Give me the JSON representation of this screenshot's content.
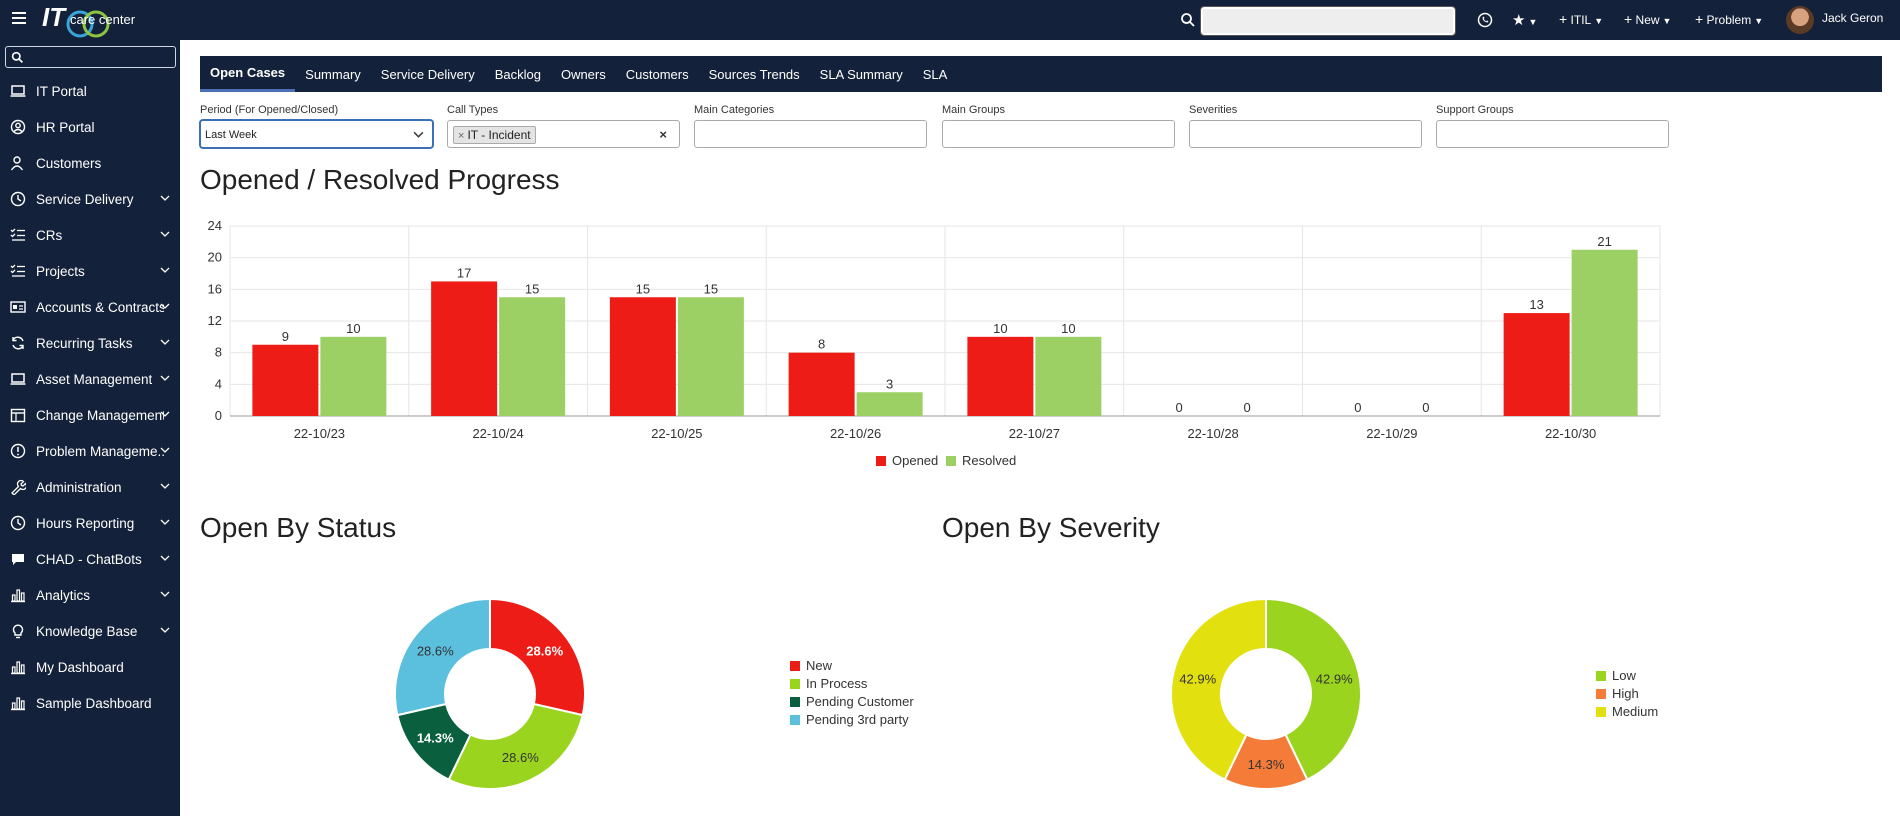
{
  "topbar": {
    "logo_text": "IT",
    "logo_sub": "care center",
    "menu_itil": "ITIL",
    "menu_new": "New",
    "menu_problem": "Problem",
    "user_name": "Jack Geron"
  },
  "sidebar": {
    "items": [
      {
        "label": "IT Portal",
        "icon": "laptop-icon",
        "chevron": false
      },
      {
        "label": "HR Portal",
        "icon": "user-circle-icon",
        "chevron": false
      },
      {
        "label": "Customers",
        "icon": "user-icon",
        "chevron": false
      },
      {
        "label": "Service Delivery",
        "icon": "clock-icon",
        "chevron": true
      },
      {
        "label": "CRs",
        "icon": "checklist-icon",
        "chevron": true
      },
      {
        "label": "Projects",
        "icon": "checklist-icon",
        "chevron": true
      },
      {
        "label": "Accounts & Contracts",
        "icon": "id-card-icon",
        "chevron": true
      },
      {
        "label": "Recurring Tasks",
        "icon": "refresh-icon",
        "chevron": true
      },
      {
        "label": "Asset Management",
        "icon": "laptop-icon",
        "chevron": true
      },
      {
        "label": "Change Management",
        "icon": "calendar-icon",
        "chevron": true
      },
      {
        "label": "Problem Manageme...",
        "icon": "info-circle-icon",
        "chevron": true
      },
      {
        "label": "Administration",
        "icon": "wrench-icon",
        "chevron": true
      },
      {
        "label": "Hours Reporting",
        "icon": "clock-icon",
        "chevron": true
      },
      {
        "label": "CHAD - ChatBots",
        "icon": "chat-icon",
        "chevron": true
      },
      {
        "label": "Analytics",
        "icon": "bar-chart-icon",
        "chevron": true
      },
      {
        "label": "Knowledge Base",
        "icon": "lightbulb-icon",
        "chevron": true
      },
      {
        "label": "My Dashboard",
        "icon": "bar-chart-icon",
        "chevron": false
      },
      {
        "label": "Sample Dashboard",
        "icon": "bar-chart-icon",
        "chevron": false
      }
    ]
  },
  "tabs": [
    {
      "label": "Open Cases",
      "active": true
    },
    {
      "label": "Summary"
    },
    {
      "label": "Service Delivery"
    },
    {
      "label": "Backlog"
    },
    {
      "label": "Owners"
    },
    {
      "label": "Customers"
    },
    {
      "label": "Sources Trends"
    },
    {
      "label": "SLA Summary"
    },
    {
      "label": "SLA"
    }
  ],
  "filters": {
    "period": {
      "label": "Period (For Opened/Closed)",
      "value": "Last Week"
    },
    "call_types": {
      "label": "Call Types",
      "chip": "IT - Incident"
    },
    "main_categories": {
      "label": "Main Categories"
    },
    "main_groups": {
      "label": "Main Groups"
    },
    "severities": {
      "label": "Severities"
    },
    "support_groups": {
      "label": "Support Groups"
    }
  },
  "sections": {
    "progress_title": "Opened / Resolved Progress",
    "status_title": "Open By Status",
    "severity_title": "Open By Severity"
  },
  "chart_data": [
    {
      "type": "bar",
      "title": "Opened / Resolved Progress",
      "categories": [
        "22-10/23",
        "22-10/24",
        "22-10/25",
        "22-10/26",
        "22-10/27",
        "22-10/28",
        "22-10/29",
        "22-10/30"
      ],
      "series": [
        {
          "name": "Opened",
          "color": "#ee1c16",
          "values": [
            9,
            17,
            15,
            8,
            10,
            0,
            0,
            13
          ]
        },
        {
          "name": "Resolved",
          "color": "#9ccf64",
          "values": [
            10,
            15,
            15,
            3,
            10,
            0,
            0,
            21
          ]
        }
      ],
      "ylim": [
        0,
        24
      ],
      "yticks": [
        0,
        4,
        8,
        12,
        16,
        20,
        24
      ],
      "grid": true,
      "legend": "bottom"
    },
    {
      "type": "pie",
      "title": "Open By Status",
      "slices": [
        {
          "name": "New",
          "value": 28.6,
          "label": "28.6%",
          "color": "#ee1c16"
        },
        {
          "name": "In Process",
          "value": 28.6,
          "label": "28.6%",
          "color": "#9ad41e"
        },
        {
          "name": "Pending Customer",
          "value": 14.3,
          "label": "14.3%",
          "color": "#0a5f3f"
        },
        {
          "name": "Pending 3rd party",
          "value": 28.6,
          "label": "28.6%",
          "color": "#5bbfde"
        }
      ],
      "legend": "right"
    },
    {
      "type": "pie",
      "title": "Open By Severity",
      "slices": [
        {
          "name": "Low",
          "value": 42.9,
          "label": "42.9%",
          "color": "#9ad41e"
        },
        {
          "name": "High",
          "value": 14.3,
          "label": "14.3%",
          "color": "#f57b39"
        },
        {
          "name": "Medium",
          "value": 42.9,
          "label": "42.9%",
          "color": "#e3e00f"
        }
      ],
      "legend": "right"
    }
  ]
}
